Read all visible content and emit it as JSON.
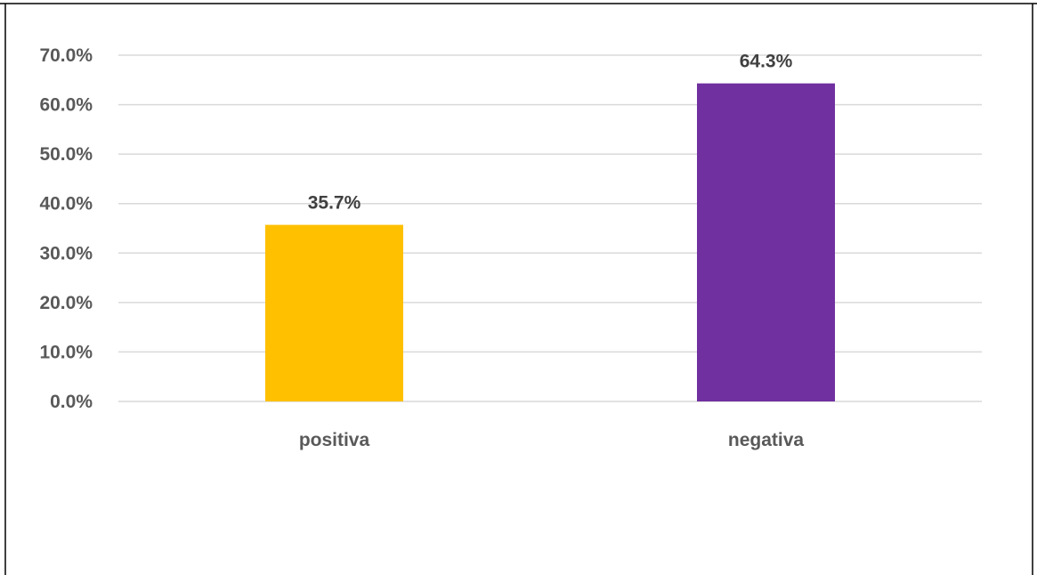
{
  "chart_data": {
    "type": "bar",
    "categories": [
      "positiva",
      "negativa"
    ],
    "values": [
      35.7,
      64.3
    ],
    "data_labels": [
      "35.7%",
      "64.3%"
    ],
    "bar_colors": [
      "#FFC000",
      "#7030A0"
    ],
    "ylim": [
      0,
      70
    ],
    "yticks": [
      0,
      10,
      20,
      30,
      40,
      50,
      60,
      70
    ],
    "ytick_labels": [
      "0.0%",
      "10.0%",
      "20.0%",
      "30.0%",
      "40.0%",
      "50.0%",
      "60.0%",
      "70.0%"
    ],
    "title": "",
    "xlabel": "",
    "ylabel": "",
    "grid": true,
    "legend": "none",
    "gridline_color": "#D9D9D9"
  }
}
